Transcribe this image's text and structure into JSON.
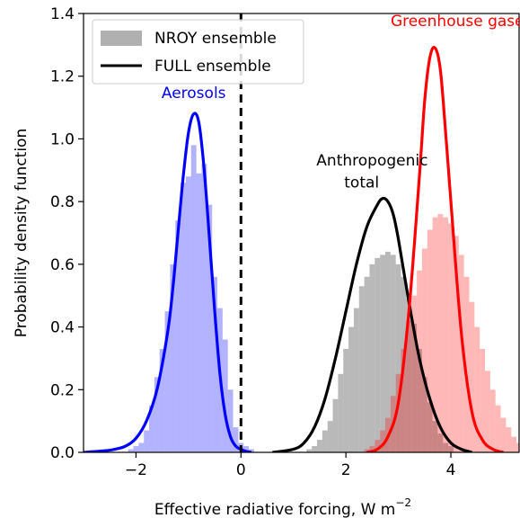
{
  "chart_data": {
    "type": "histogram+line",
    "xlabel": "Effective radiative forcing, W m",
    "xlabel_superscript": "−2",
    "ylabel": "Probability density function",
    "xlim": [
      -3.0,
      5.3
    ],
    "ylim": [
      0,
      1.4
    ],
    "xticks": [
      -2,
      0,
      2,
      4
    ],
    "xtick_labels": [
      "−2",
      "0",
      "2",
      "4"
    ],
    "yticks": [
      0.0,
      0.2,
      0.4,
      0.6,
      0.8,
      1.0,
      1.2,
      1.4
    ],
    "ytick_labels": [
      "0.0",
      "0.2",
      "0.4",
      "0.6",
      "0.8",
      "1.0",
      "1.2",
      "1.4"
    ],
    "zero_line_x": 0,
    "legend": {
      "position": "top-left",
      "entries": [
        {
          "label": "NROY ensemble",
          "type": "patch",
          "color": "#b0b0b0"
        },
        {
          "label": "FULL ensemble",
          "type": "line",
          "color": "#000000"
        }
      ]
    },
    "annotations": [
      {
        "key": "aer",
        "text": "Aerosols",
        "x": -0.9,
        "y": 1.13,
        "color": "#0000ff"
      },
      {
        "key": "anth1",
        "text": "Anthropogenic",
        "x": 2.5,
        "y": 0.915,
        "color": "#000000"
      },
      {
        "key": "anth2",
        "text": "total",
        "x": 2.3,
        "y": 0.845,
        "color": "#000000"
      },
      {
        "key": "ghg",
        "text": "Greenhouse gases",
        "x": 4.2,
        "y": 1.36,
        "color": "#ff0000"
      }
    ],
    "histograms": [
      {
        "name": "Aerosols NROY",
        "color": "#0000ff",
        "opacity": 0.3,
        "start": -2.15,
        "width": 0.1,
        "values": [
          0.01,
          0.02,
          0.03,
          0.07,
          0.15,
          0.24,
          0.33,
          0.45,
          0.6,
          0.74,
          0.86,
          0.88,
          0.98,
          0.89,
          0.92,
          0.79,
          0.56,
          0.46,
          0.36,
          0.2,
          0.08,
          0.03,
          0.02,
          0.01
        ]
      },
      {
        "name": "Anthropogenic NROY",
        "color": "#808080",
        "opacity": 0.55,
        "start": 1.25,
        "width": 0.1,
        "values": [
          0.01,
          0.02,
          0.04,
          0.07,
          0.1,
          0.17,
          0.25,
          0.33,
          0.4,
          0.46,
          0.53,
          0.56,
          0.6,
          0.62,
          0.63,
          0.64,
          0.63,
          0.6,
          0.56,
          0.49,
          0.41,
          0.33,
          0.24,
          0.16,
          0.1,
          0.06,
          0.03,
          0.02
        ]
      },
      {
        "name": "Greenhouse gases NROY",
        "color": "#ff0000",
        "opacity": 0.28,
        "start": 2.35,
        "width": 0.1,
        "values": [
          0.01,
          0.02,
          0.04,
          0.07,
          0.11,
          0.18,
          0.25,
          0.33,
          0.42,
          0.5,
          0.58,
          0.65,
          0.71,
          0.75,
          0.76,
          0.75,
          0.73,
          0.69,
          0.63,
          0.56,
          0.48,
          0.4,
          0.33,
          0.26,
          0.2,
          0.15,
          0.11,
          0.08,
          0.05,
          0.03,
          0.02
        ]
      }
    ],
    "series": [
      {
        "name": "Aerosols FULL",
        "color": "#0000ff",
        "x": [
          -3.0,
          -2.6,
          -2.4,
          -2.2,
          -2.0,
          -1.8,
          -1.6,
          -1.4,
          -1.3,
          -1.2,
          -1.1,
          -1.0,
          -0.9,
          -0.8,
          -0.7,
          -0.6,
          -0.5,
          -0.4,
          -0.3,
          -0.2,
          -0.1,
          0.0,
          0.1,
          0.2
        ],
        "y": [
          0.0,
          0.005,
          0.01,
          0.02,
          0.045,
          0.1,
          0.2,
          0.38,
          0.52,
          0.7,
          0.88,
          1.02,
          1.08,
          1.05,
          0.9,
          0.68,
          0.45,
          0.25,
          0.12,
          0.05,
          0.02,
          0.01,
          0.003,
          0.0
        ]
      },
      {
        "name": "Anthropogenic total FULL",
        "color": "#000000",
        "x": [
          0.6,
          1.0,
          1.2,
          1.4,
          1.6,
          1.8,
          2.0,
          2.2,
          2.4,
          2.6,
          2.7,
          2.8,
          2.9,
          3.0,
          3.2,
          3.4,
          3.6,
          3.8,
          4.0,
          4.2,
          4.4
        ],
        "y": [
          0.0,
          0.01,
          0.03,
          0.08,
          0.17,
          0.3,
          0.45,
          0.6,
          0.72,
          0.79,
          0.81,
          0.8,
          0.76,
          0.68,
          0.48,
          0.3,
          0.17,
          0.08,
          0.03,
          0.01,
          0.0
        ]
      },
      {
        "name": "Greenhouse gases FULL",
        "color": "#ff0000",
        "x": [
          2.4,
          2.6,
          2.8,
          3.0,
          3.2,
          3.4,
          3.5,
          3.6,
          3.7,
          3.8,
          3.9,
          4.0,
          4.2,
          4.4,
          4.6,
          4.8,
          5.0
        ],
        "y": [
          0.0,
          0.01,
          0.05,
          0.16,
          0.45,
          0.88,
          1.12,
          1.26,
          1.29,
          1.22,
          1.02,
          0.8,
          0.38,
          0.13,
          0.04,
          0.01,
          0.0
        ]
      }
    ]
  }
}
